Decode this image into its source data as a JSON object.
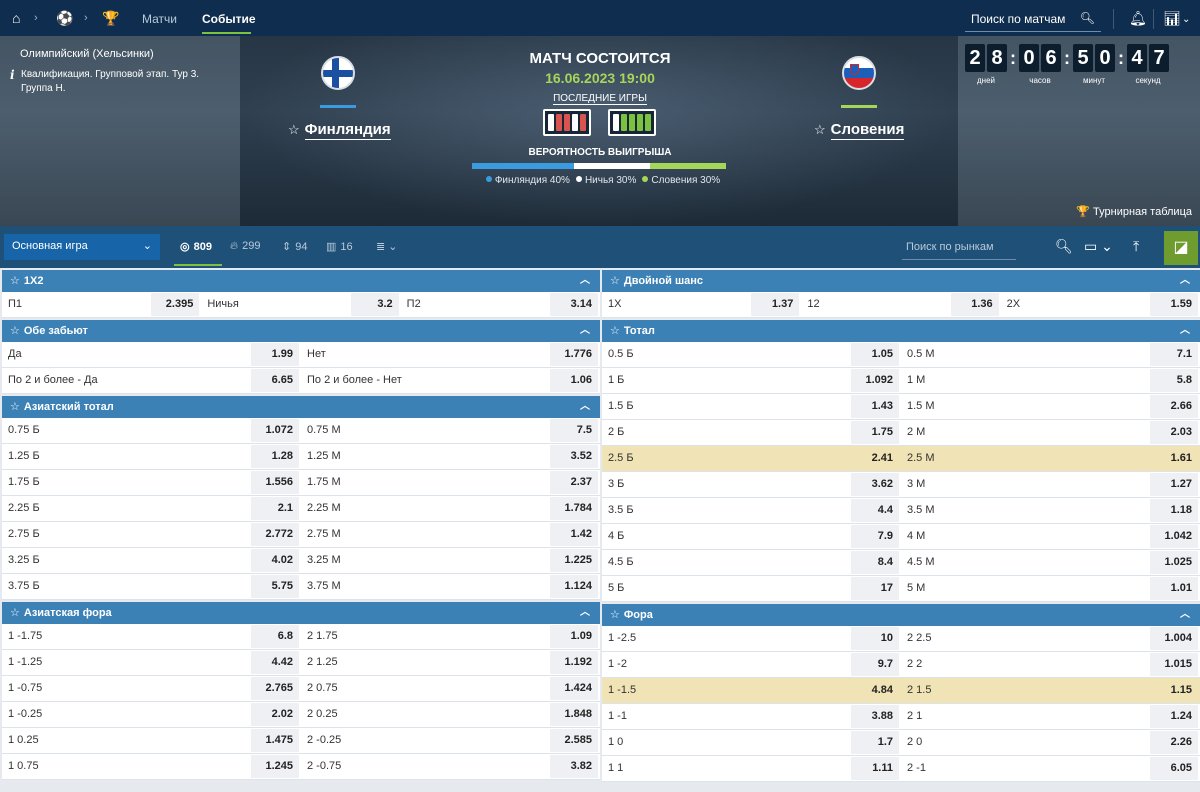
{
  "nav": {
    "icons": [
      "home-icon",
      "soccer-ball-icon",
      "trophy-icon"
    ],
    "tabs": [
      {
        "label": "Матчи",
        "active": false
      },
      {
        "label": "Событие",
        "active": true
      }
    ],
    "search_placeholder": "Поиск по матчам"
  },
  "hero": {
    "stadium": "Олимпийский (Хельсинки)",
    "qualification": "Квалификация. Групповой этап. Тур 3. Группа H.",
    "home": {
      "name": "Финляндия",
      "color": "#3b9be0"
    },
    "away": {
      "name": "Словения",
      "color": "#a5d65a"
    },
    "match_status": "МАТЧ СОСТОИТСЯ",
    "match_date": "16.06.2023 19:00",
    "last_games_label": "ПОСЛЕДНИЕ ИГРЫ",
    "home_form": [
      "white",
      "red",
      "red",
      "white",
      "red"
    ],
    "away_form": [
      "white",
      "green",
      "green",
      "green",
      "green"
    ],
    "win_prob_label": "ВЕРОЯТНОСТЬ ВЫИГРЫША",
    "probability": [
      {
        "label": "Финляндия 40%",
        "value": 40,
        "color": "#3b9be0"
      },
      {
        "label": "Ничья 30%",
        "value": 30,
        "color": "#ffffff"
      },
      {
        "label": "Словения 30%",
        "value": 30,
        "color": "#a5d65a"
      }
    ],
    "countdown": [
      {
        "digits": [
          "2",
          "8"
        ],
        "label": "дней"
      },
      {
        "digits": [
          "0",
          "6"
        ],
        "label": "часов"
      },
      {
        "digits": [
          "5",
          "0"
        ],
        "label": "минут"
      },
      {
        "digits": [
          "4",
          "7"
        ],
        "label": "секунд"
      }
    ],
    "tournament_table": "Турнирная таблица"
  },
  "markets_bar": {
    "selected_game": "Основная игра",
    "stats": [
      {
        "icon": "target-icon",
        "value": "809",
        "active": true
      },
      {
        "icon": "fire-icon",
        "value": "299"
      },
      {
        "icon": "sort-arrows-icon",
        "value": "94"
      },
      {
        "icon": "stats-bars-icon",
        "value": "16"
      },
      {
        "icon": "list-icon",
        "value": ""
      }
    ],
    "search_placeholder": "Поиск по рынкам"
  },
  "left_sections": [
    {
      "title": "1X2",
      "cols": 3,
      "rows": [
        [
          [
            "П1",
            "2.395"
          ],
          [
            "Ничья",
            "3.2"
          ],
          [
            "П2",
            "3.14"
          ]
        ]
      ]
    },
    {
      "title": "Обе забьют",
      "cols": 2,
      "rows": [
        [
          [
            "Да",
            "1.99"
          ],
          [
            "Нет",
            "1.776"
          ]
        ],
        [
          [
            "По 2 и более - Да",
            "6.65"
          ],
          [
            "По 2 и более - Нет",
            "1.06"
          ]
        ]
      ]
    },
    {
      "title": "Азиатский тотал",
      "cols": 2,
      "rows": [
        [
          [
            "0.75 Б",
            "1.072"
          ],
          [
            "0.75 М",
            "7.5"
          ]
        ],
        [
          [
            "1.25 Б",
            "1.28"
          ],
          [
            "1.25 М",
            "3.52"
          ]
        ],
        [
          [
            "1.75 Б",
            "1.556"
          ],
          [
            "1.75 М",
            "2.37"
          ]
        ],
        [
          [
            "2.25 Б",
            "2.1"
          ],
          [
            "2.25 М",
            "1.784"
          ]
        ],
        [
          [
            "2.75 Б",
            "2.772"
          ],
          [
            "2.75 М",
            "1.42"
          ]
        ],
        [
          [
            "3.25 Б",
            "4.02"
          ],
          [
            "3.25 М",
            "1.225"
          ]
        ],
        [
          [
            "3.75 Б",
            "5.75"
          ],
          [
            "3.75 М",
            "1.124"
          ]
        ]
      ]
    },
    {
      "title": "Азиатская фора",
      "cols": 2,
      "rows": [
        [
          [
            "1 -1.75",
            "6.8"
          ],
          [
            "2 1.75",
            "1.09"
          ]
        ],
        [
          [
            "1 -1.25",
            "4.42"
          ],
          [
            "2 1.25",
            "1.192"
          ]
        ],
        [
          [
            "1 -0.75",
            "2.765"
          ],
          [
            "2 0.75",
            "1.424"
          ]
        ],
        [
          [
            "1 -0.25",
            "2.02"
          ],
          [
            "2 0.25",
            "1.848"
          ]
        ],
        [
          [
            "1 0.25",
            "1.475"
          ],
          [
            "2 -0.25",
            "2.585"
          ]
        ],
        [
          [
            "1 0.75",
            "1.245"
          ],
          [
            "2 -0.75",
            "3.82"
          ]
        ]
      ]
    }
  ],
  "right_sections": [
    {
      "title": "Двойной шанс",
      "cols": 3,
      "rows": [
        [
          [
            "1X",
            "1.37"
          ],
          [
            "12",
            "1.36"
          ],
          [
            "2X",
            "1.59"
          ]
        ]
      ]
    },
    {
      "title": "Тотал",
      "cols": 2,
      "highlight_row": 4,
      "rows": [
        [
          [
            "0.5 Б",
            "1.05"
          ],
          [
            "0.5 М",
            "7.1"
          ]
        ],
        [
          [
            "1 Б",
            "1.092"
          ],
          [
            "1 М",
            "5.8"
          ]
        ],
        [
          [
            "1.5 Б",
            "1.43"
          ],
          [
            "1.5 М",
            "2.66"
          ]
        ],
        [
          [
            "2 Б",
            "1.75"
          ],
          [
            "2 М",
            "2.03"
          ]
        ],
        [
          [
            "2.5 Б",
            "2.41"
          ],
          [
            "2.5 М",
            "1.61"
          ]
        ],
        [
          [
            "3 Б",
            "3.62"
          ],
          [
            "3 М",
            "1.27"
          ]
        ],
        [
          [
            "3.5 Б",
            "4.4"
          ],
          [
            "3.5 М",
            "1.18"
          ]
        ],
        [
          [
            "4 Б",
            "7.9"
          ],
          [
            "4 М",
            "1.042"
          ]
        ],
        [
          [
            "4.5 Б",
            "8.4"
          ],
          [
            "4.5 М",
            "1.025"
          ]
        ],
        [
          [
            "5 Б",
            "17"
          ],
          [
            "5 М",
            "1.01"
          ]
        ]
      ]
    },
    {
      "title": "Фора",
      "cols": 2,
      "highlight_row": 2,
      "rows": [
        [
          [
            "1 -2.5",
            "10"
          ],
          [
            "2 2.5",
            "1.004"
          ]
        ],
        [
          [
            "1 -2",
            "9.7"
          ],
          [
            "2 2",
            "1.015"
          ]
        ],
        [
          [
            "1 -1.5",
            "4.84"
          ],
          [
            "2 1.5",
            "1.15"
          ]
        ],
        [
          [
            "1 -1",
            "3.88"
          ],
          [
            "2 1",
            "1.24"
          ]
        ],
        [
          [
            "1 0",
            "1.7"
          ],
          [
            "2 0",
            "2.26"
          ]
        ],
        [
          [
            "1 1",
            "1.11"
          ],
          [
            "2 -1",
            "6.05"
          ]
        ]
      ]
    }
  ]
}
